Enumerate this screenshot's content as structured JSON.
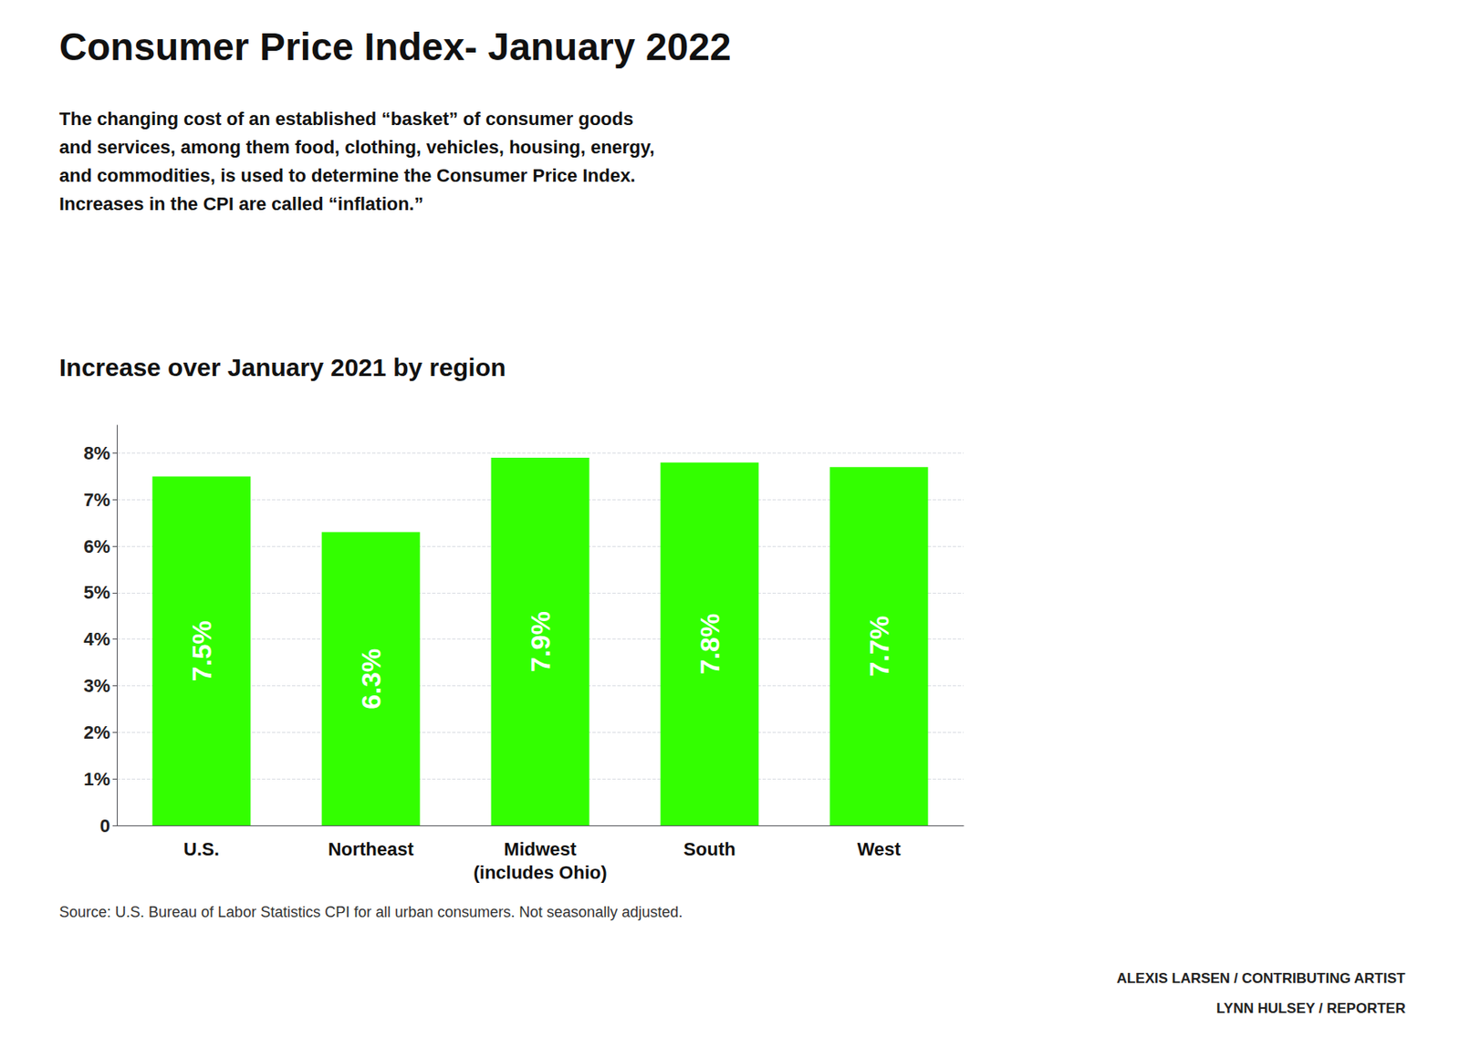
{
  "chart_data": {
    "type": "bar",
    "title": "Consumer Price Index- January 2022",
    "subtitle": "The changing cost of an established “basket” of consumer goods\nand services, among them food, clothing, vehicles, housing, energy,\nand commodities, is used to determine the Consumer Price Index.\nIncreases in the CPI are called “inflation.”",
    "section_title": "Increase over January 2021 by region",
    "categories": [
      "U.S.",
      "Northeast",
      "Midwest\n(includes Ohio)",
      "South",
      "West"
    ],
    "values": [
      7.5,
      6.3,
      7.9,
      7.8,
      7.7
    ],
    "value_labels": [
      "7.5%",
      "6.3%",
      "7.9%",
      "7.8%",
      "7.7%"
    ],
    "data_labels": true,
    "color": "#33ff00",
    "ylim": [
      0,
      8.6
    ],
    "yticks": [
      0,
      {
        "value": 1,
        "label": "1%"
      },
      {
        "value": 2,
        "label": "2%"
      },
      {
        "value": 3,
        "label": "3%"
      },
      {
        "value": 4,
        "label": "4%"
      },
      {
        "value": 5,
        "label": "5%"
      },
      {
        "value": 6,
        "label": "6%"
      },
      {
        "value": 7,
        "label": "7%"
      },
      {
        "value": 8,
        "label": "8%"
      }
    ],
    "grid": true,
    "source": "Source: U.S. Bureau of Labor Statistics CPI for all urban consumers. Not seasonally adjusted.",
    "credits": [
      "ALEXIS LARSEN / CONTRIBUTING ARTIST",
      "LYNN HULSEY / REPORTER"
    ]
  }
}
